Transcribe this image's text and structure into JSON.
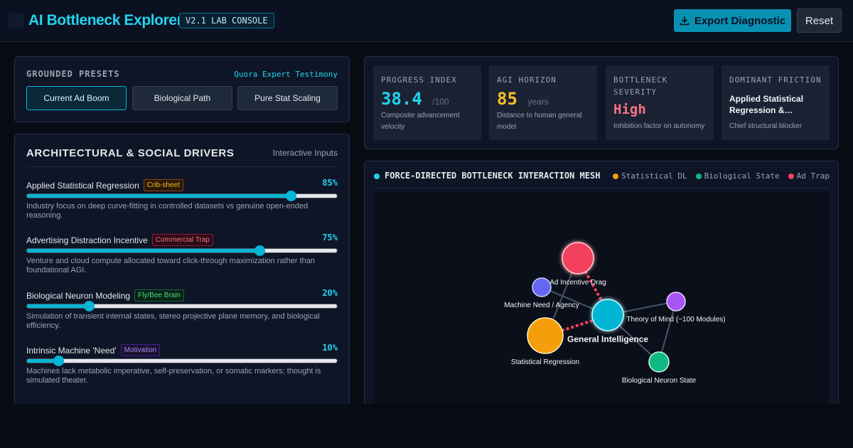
{
  "header": {
    "title": "AI Bottleneck Explorer",
    "version": "V2.1 LAB CONSOLE",
    "export_label": "Export Diagnostic",
    "reset_label": "Reset"
  },
  "presets": {
    "heading": "GROUNDED PRESETS",
    "link": "Quora Expert Testimony",
    "items": [
      {
        "label": "Current Ad Boom",
        "active": true
      },
      {
        "label": "Biological Path",
        "active": false
      },
      {
        "label": "Pure Stat Scaling",
        "active": false
      }
    ]
  },
  "drivers": {
    "title": "ARCHITECTURAL & SOCIAL DRIVERS",
    "subtitle": "Interactive Inputs",
    "items": [
      {
        "name": "Applied Statistical Regression",
        "tag": "Crib-sheet",
        "tag_color": "#fbbf24",
        "percent": "85%",
        "value": 0.85,
        "description": "Industry focus on deep curve-fitting in controlled datasets vs genuine open-ended reasoning."
      },
      {
        "name": "Advertising Distraction Incentive",
        "tag": "Commercial Trap",
        "tag_color": "#fb7185",
        "percent": "75%",
        "value": 0.75,
        "description": "Venture and cloud compute allocated toward click-through maximization rather than foundational AGI."
      },
      {
        "name": "Biological Neuron Modeling",
        "tag": "Fly/Bee Brain",
        "tag_color": "#4ade80",
        "percent": "20%",
        "value": 0.2,
        "description": "Simulation of transient internal states, stereo projective plane memory, and biological efficiency."
      },
      {
        "name": "Intrinsic Machine 'Need'",
        "tag": "Motivation",
        "tag_color": "#a78bfa",
        "percent": "10%",
        "value": 0.1,
        "description": "Machines lack metabolic imperative, self-preservation, or somatic markers; thought is simulated theater."
      }
    ]
  },
  "stats": [
    {
      "label": "PROGRESS INDEX",
      "value": "38.4",
      "unit": "/100",
      "description": "Composite advancement velocity",
      "color": "#22d3ee"
    },
    {
      "label": "AGI HORIZON",
      "value": "85",
      "unit": "years",
      "description": "Distance to human general model",
      "color": "#fbbf24"
    },
    {
      "label": "BOTTLENECK SEVERITY",
      "value": "High",
      "unit": "",
      "description": "Inhibition factor on autonomy",
      "color": "#fb7185"
    },
    {
      "label": "DOMINANT FRICTION",
      "value": "Applied Statistical Regression &…",
      "unit": "",
      "description": "Chief structural blocker",
      "color": "#f1f5f9"
    }
  ],
  "mesh": {
    "title": "FORCE-DIRECTED BOTTLENECK INTERACTION MESH",
    "legend": [
      {
        "label": "Statistical DL",
        "color": "#f59e0b"
      },
      {
        "label": "Biological State",
        "color": "#10b981"
      },
      {
        "label": "Ad Trap",
        "color": "#f43f5e"
      }
    ],
    "nodes": [
      {
        "id": "ad",
        "label": "Ad Incentive Drag",
        "color": "#f43f5e"
      },
      {
        "id": "need",
        "label": "Machine Need / Agency",
        "color": "#6366f1"
      },
      {
        "id": "gi",
        "label": "General Intelligence",
        "color": "#06b6d4"
      },
      {
        "id": "tom",
        "label": "Theory of Mind (~100 Modules)",
        "color": "#a855f7"
      },
      {
        "id": "stat",
        "label": "Statistical Regression",
        "color": "#f59e0b"
      },
      {
        "id": "bio",
        "label": "Biological Neuron State",
        "color": "#10b981"
      }
    ]
  }
}
